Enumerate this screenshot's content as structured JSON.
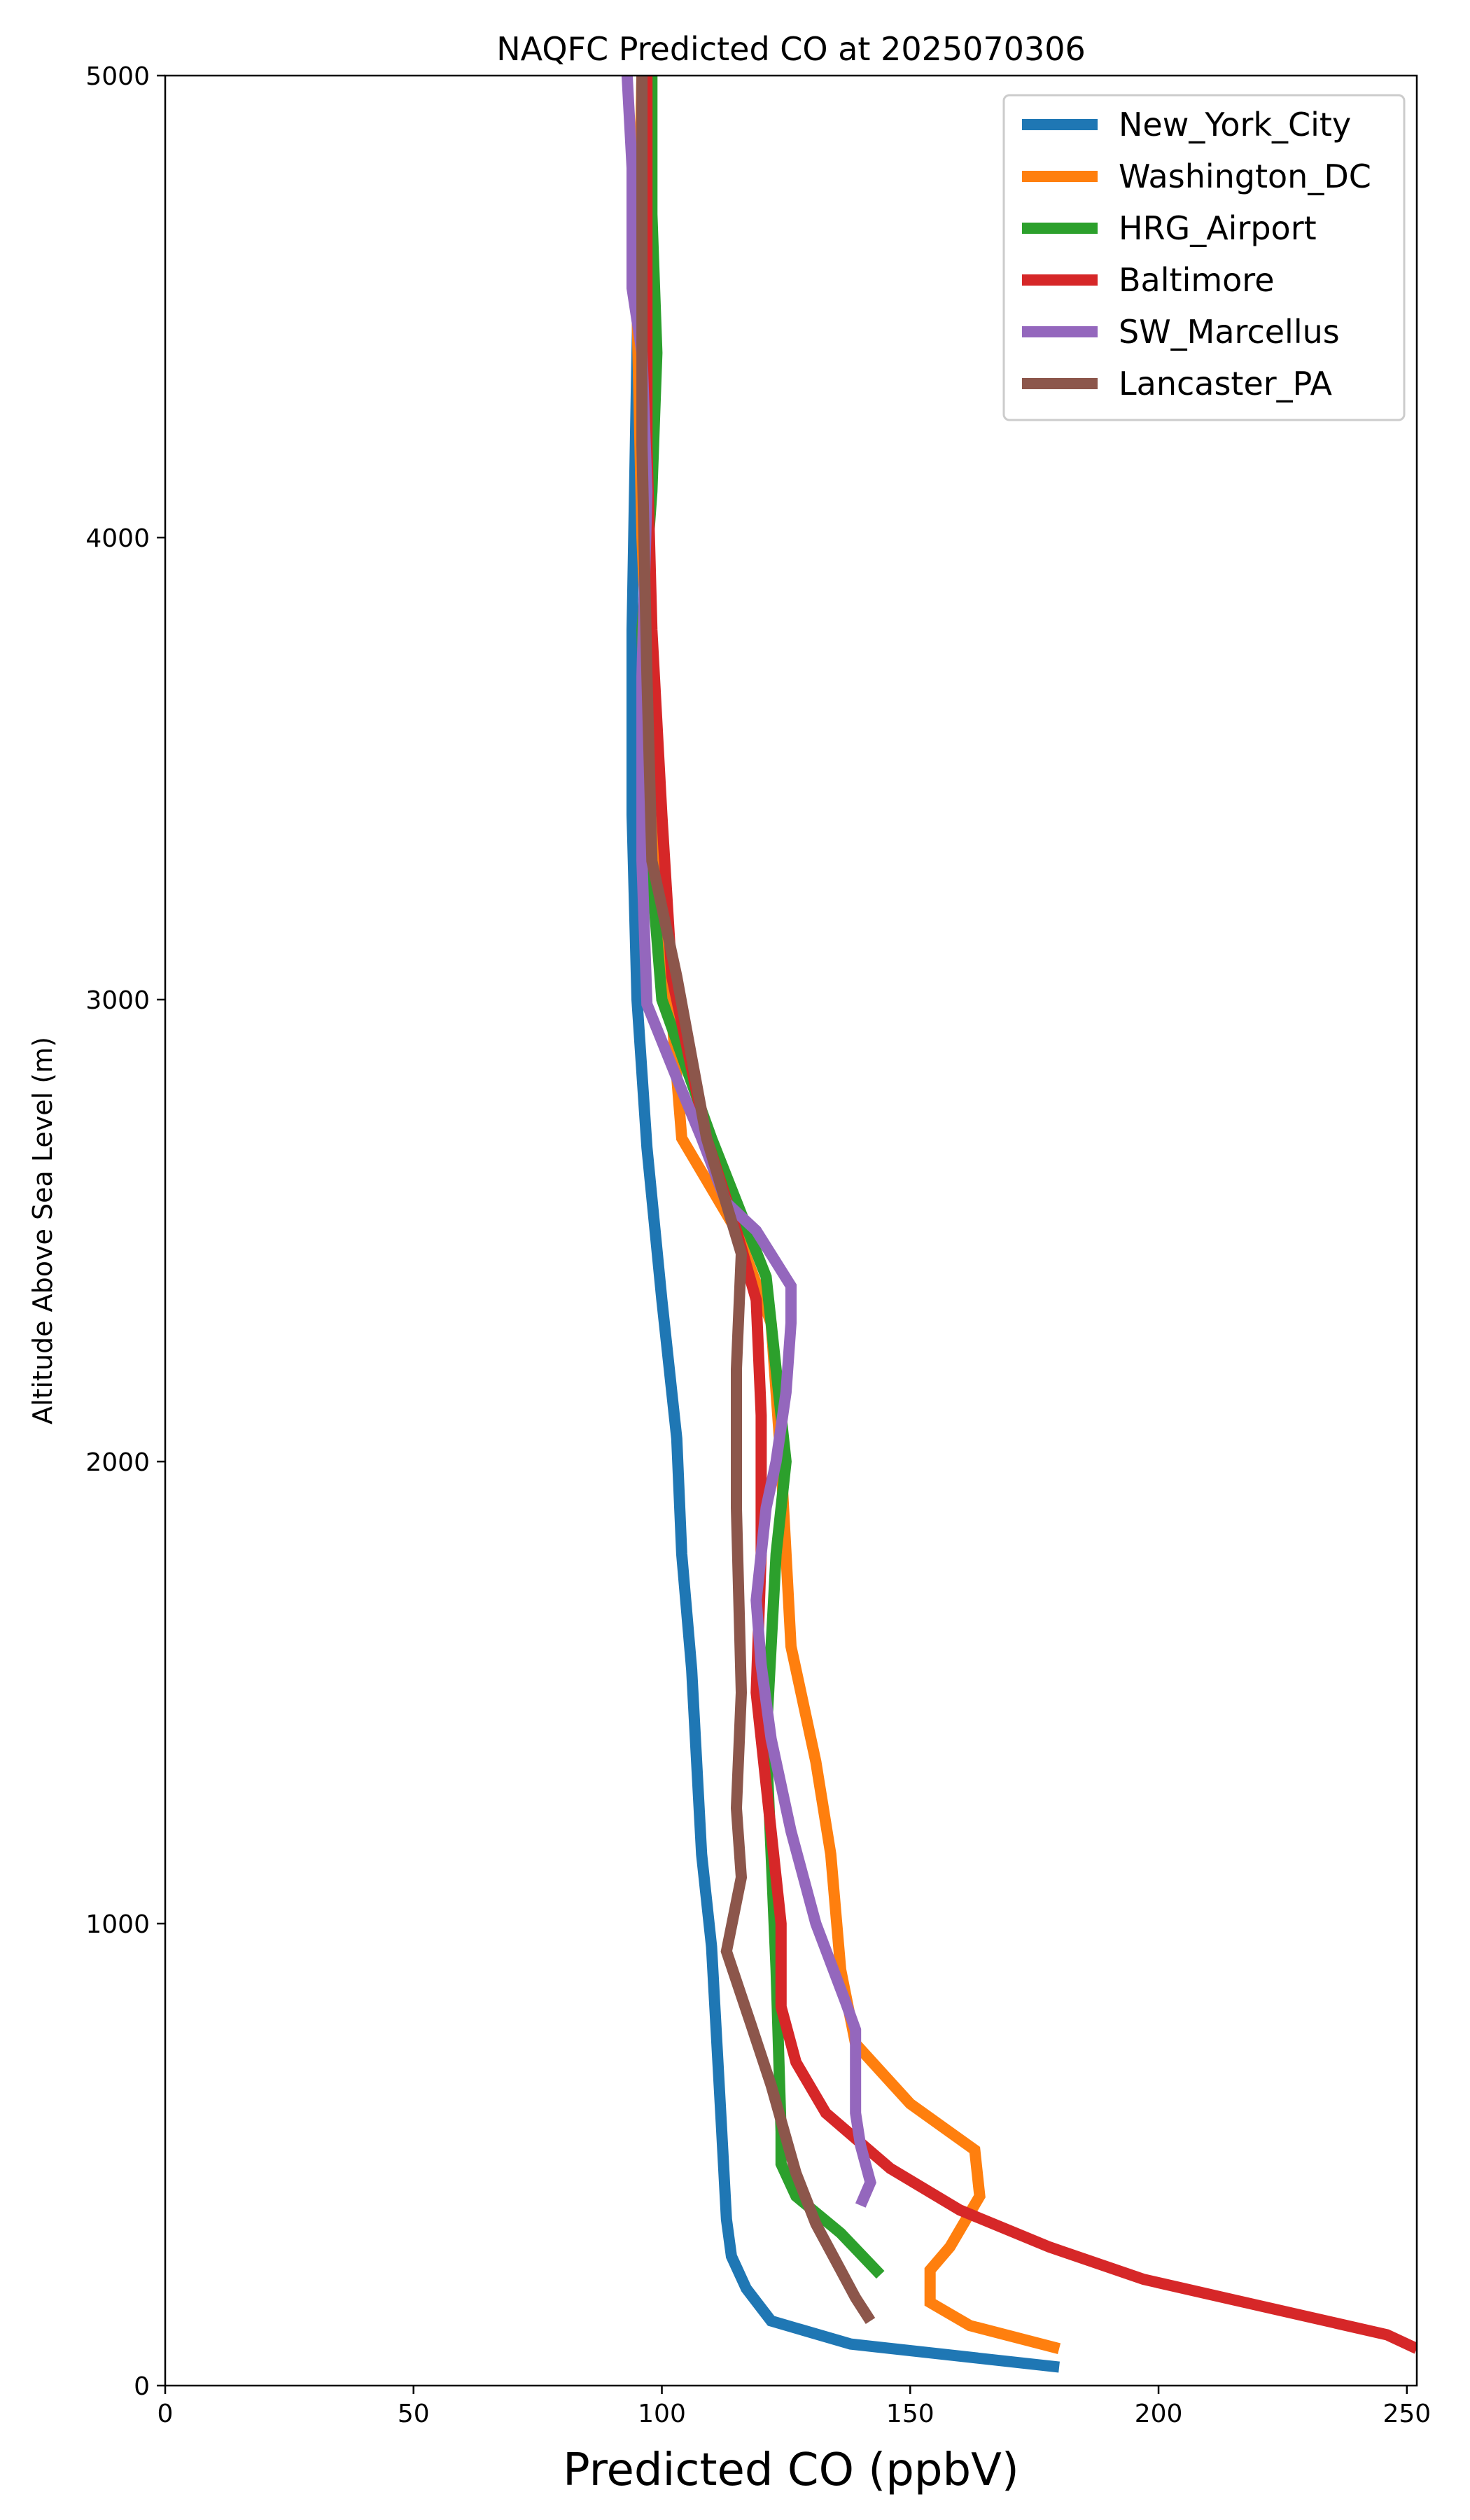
{
  "chart_data": {
    "type": "line",
    "title": "NAQFC Predicted CO at 2025070306",
    "xlabel": "Predicted CO (ppbV)",
    "ylabel": "Altitude Above Sea Level (m)",
    "xlim": [
      0,
      252
    ],
    "ylim": [
      0,
      5000
    ],
    "xticks": [
      0,
      50,
      100,
      150,
      200,
      250
    ],
    "yticks": [
      0,
      1000,
      2000,
      3000,
      4000,
      5000
    ],
    "grid": false,
    "legend_position": "top-right",
    "series": [
      {
        "name": "New_York_City",
        "color": "#1f77b4",
        "points": [
          [
            180,
            40
          ],
          [
            138,
            90
          ],
          [
            122,
            140
          ],
          [
            117,
            210
          ],
          [
            114,
            280
          ],
          [
            113,
            360
          ],
          [
            112,
            560
          ],
          [
            110,
            950
          ],
          [
            108,
            1150
          ],
          [
            106,
            1550
          ],
          [
            104,
            1800
          ],
          [
            103,
            2050
          ],
          [
            100,
            2350
          ],
          [
            97,
            2680
          ],
          [
            95,
            3000
          ],
          [
            94,
            3400
          ],
          [
            94,
            3800
          ],
          [
            95,
            4400
          ],
          [
            96,
            5000
          ]
        ]
      },
      {
        "name": "Washington_DC",
        "color": "#ff7f0e",
        "points": [
          [
            180,
            80
          ],
          [
            162,
            130
          ],
          [
            154,
            180
          ],
          [
            154,
            250
          ],
          [
            158,
            300
          ],
          [
            164,
            410
          ],
          [
            163,
            510
          ],
          [
            150,
            610
          ],
          [
            139,
            740
          ],
          [
            136,
            900
          ],
          [
            134,
            1150
          ],
          [
            131,
            1350
          ],
          [
            126,
            1600
          ],
          [
            124,
            2000
          ],
          [
            122,
            2300
          ],
          [
            115,
            2500
          ],
          [
            104,
            2700
          ],
          [
            101,
            3100
          ],
          [
            98,
            3500
          ],
          [
            96,
            4000
          ],
          [
            95,
            4500
          ],
          [
            96,
            5000
          ]
        ]
      },
      {
        "name": "HRG_Airport",
        "color": "#2ca02c",
        "points": [
          [
            144,
            240
          ],
          [
            136,
            330
          ],
          [
            127,
            410
          ],
          [
            124,
            480
          ],
          [
            124,
            550
          ],
          [
            123,
            900
          ],
          [
            121,
            1400
          ],
          [
            123,
            1800
          ],
          [
            125,
            2000
          ],
          [
            123,
            2200
          ],
          [
            121,
            2400
          ],
          [
            110,
            2700
          ],
          [
            100,
            3000
          ],
          [
            97,
            3400
          ],
          [
            96,
            3800
          ],
          [
            98,
            4100
          ],
          [
            99,
            4400
          ],
          [
            98,
            4700
          ],
          [
            98,
            5000
          ]
        ]
      },
      {
        "name": "Baltimore",
        "color": "#d62728",
        "points": [
          [
            252,
            80
          ],
          [
            246,
            110
          ],
          [
            197,
            230
          ],
          [
            178,
            300
          ],
          [
            160,
            380
          ],
          [
            146,
            470
          ],
          [
            133,
            590
          ],
          [
            127,
            700
          ],
          [
            124,
            820
          ],
          [
            124,
            1000
          ],
          [
            122,
            1200
          ],
          [
            119,
            1500
          ],
          [
            120,
            1800
          ],
          [
            120,
            2100
          ],
          [
            119,
            2350
          ],
          [
            115,
            2500
          ],
          [
            109,
            2700
          ],
          [
            102,
            3050
          ],
          [
            100,
            3400
          ],
          [
            98,
            3800
          ],
          [
            97,
            4200
          ],
          [
            97,
            5000
          ]
        ]
      },
      {
        "name": "SW_Marcellus",
        "color": "#9467bd",
        "points": [
          [
            140,
            390
          ],
          [
            142,
            440
          ],
          [
            141,
            480
          ],
          [
            140,
            520
          ],
          [
            139,
            590
          ],
          [
            139,
            680
          ],
          [
            139,
            770
          ],
          [
            137,
            830
          ],
          [
            131,
            1000
          ],
          [
            126,
            1200
          ],
          [
            122,
            1400
          ],
          [
            120,
            1560
          ],
          [
            119,
            1700
          ],
          [
            121,
            1900
          ],
          [
            123,
            2000
          ],
          [
            125,
            2150
          ],
          [
            126,
            2300
          ],
          [
            126,
            2380
          ],
          [
            119,
            2500
          ],
          [
            113,
            2560
          ],
          [
            108,
            2700
          ],
          [
            103,
            2830
          ],
          [
            97,
            2990
          ],
          [
            96,
            3300
          ],
          [
            96,
            3700
          ],
          [
            97,
            4100
          ],
          [
            96,
            4400
          ],
          [
            94,
            4540
          ],
          [
            94,
            4800
          ],
          [
            93,
            5000
          ]
        ]
      },
      {
        "name": "Lancaster_PA",
        "color": "#8c564b",
        "points": [
          [
            142,
            140
          ],
          [
            139,
            190
          ],
          [
            136,
            250
          ],
          [
            131,
            350
          ],
          [
            127,
            460
          ],
          [
            122,
            650
          ],
          [
            118,
            780
          ],
          [
            113,
            940
          ],
          [
            116,
            1100
          ],
          [
            115,
            1250
          ],
          [
            116,
            1500
          ],
          [
            115,
            1900
          ],
          [
            115,
            2200
          ],
          [
            116,
            2450
          ],
          [
            109,
            2700
          ],
          [
            103,
            3050
          ],
          [
            98,
            3300
          ],
          [
            97,
            3700
          ],
          [
            96,
            4200
          ],
          [
            96,
            5000
          ]
        ]
      }
    ]
  }
}
